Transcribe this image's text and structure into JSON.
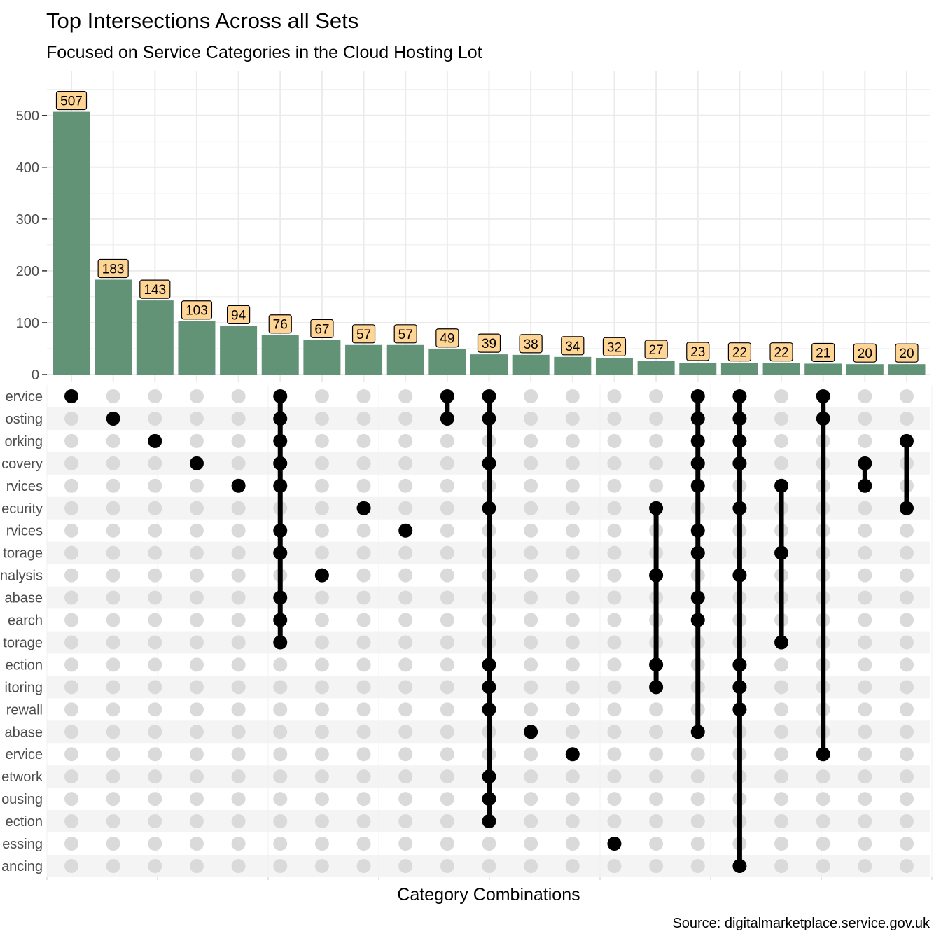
{
  "chart_data": {
    "type": "bar",
    "title": "Top Intersections Across all Sets",
    "subtitle": "Focused on Service Categories in the Cloud Hosting Lot",
    "xlabel": "Category Combinations",
    "caption": "Source: digitalmarketplace.service.gov.uk",
    "ylim": [
      0,
      555
    ],
    "yticks": [
      0,
      100,
      200,
      300,
      400,
      500
    ],
    "grid": true,
    "set_labels": [
      "ervice",
      "osting",
      "orking",
      "covery",
      "rvices",
      "ecurity",
      "rvices",
      "torage",
      "nalysis",
      "abase",
      "earch",
      "torage",
      "ection",
      "itoring",
      "rewall",
      "abase",
      "ervice",
      "etwork",
      "ousing",
      "ection",
      "essing",
      "ancing"
    ],
    "values": [
      507,
      183,
      143,
      103,
      94,
      76,
      67,
      57,
      57,
      49,
      39,
      38,
      34,
      32,
      27,
      23,
      22,
      22,
      21,
      20,
      20
    ],
    "memberships": [
      [
        0
      ],
      [
        1
      ],
      [
        2
      ],
      [
        3
      ],
      [
        4
      ],
      [
        0,
        1,
        2,
        3,
        4,
        6,
        7,
        9,
        10,
        11
      ],
      [
        8
      ],
      [
        5
      ],
      [
        6
      ],
      [
        0,
        1
      ],
      [
        0,
        1,
        3,
        5,
        12,
        13,
        14,
        17,
        18,
        19
      ],
      [
        15
      ],
      [
        16
      ],
      [
        20
      ],
      [
        5,
        8,
        12,
        13
      ],
      [
        0,
        1,
        2,
        3,
        4,
        6,
        7,
        9,
        10,
        15
      ],
      [
        0,
        1,
        2,
        3,
        5,
        8,
        12,
        13,
        14,
        21
      ],
      [
        4,
        7,
        11
      ],
      [
        0,
        1,
        16
      ],
      [
        3,
        4
      ],
      [
        2,
        5
      ]
    ],
    "colors": {
      "bar": "#629377",
      "label_fill": "#ffd596",
      "dot_active": "#000000",
      "dot_inactive": "#dadada",
      "stripe": "#f4f4f4",
      "grid": "#ebebeb"
    }
  }
}
